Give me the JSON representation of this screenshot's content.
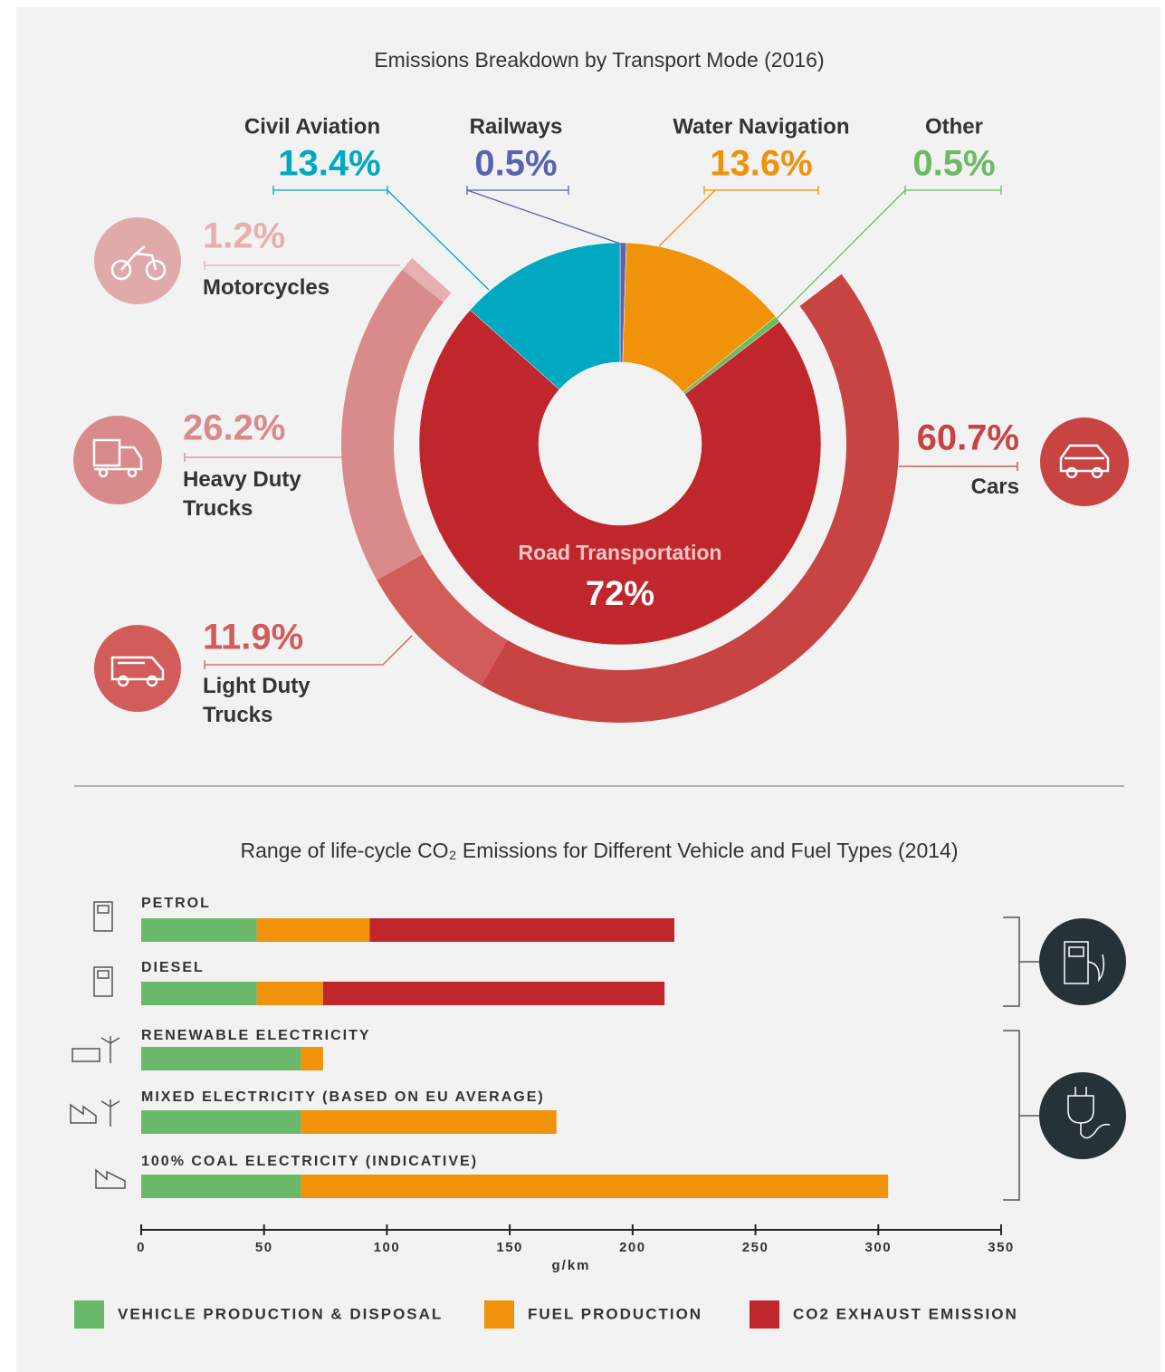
{
  "chart_data": [
    {
      "type": "donut",
      "title": "Emissions Breakdown by Transport Mode (2016)",
      "categories": [
        "Railways",
        "Water Navigation",
        "Other",
        "Road Transportation",
        "Civil Aviation"
      ],
      "values": [
        0.5,
        13.6,
        0.5,
        72,
        13.4
      ],
      "value_labels": [
        "0.5%",
        "13.6%",
        "0.5%",
        "72%",
        "13.4%"
      ],
      "colors": [
        "#5b62b0",
        "#f0920a",
        "#6abb64",
        "#c0272d",
        "#00a9c1"
      ],
      "breakdown": {
        "categories": [
          "Cars",
          "Light Duty Trucks",
          "Heavy Duty Trucks",
          "Motorcycles"
        ],
        "values": [
          60.7,
          11.9,
          26.2,
          1.2
        ],
        "value_labels": [
          "60.7%",
          "11.9%",
          "26.2%",
          "1.2%"
        ],
        "colors": [
          "#c74443",
          "#d25c5a",
          "#d98a8a",
          "#e6b0b0"
        ]
      }
    },
    {
      "type": "stacked_barh",
      "title": "Range of life-cycle CO₂ Emissions for Different Vehicle and Fuel Types (2014)",
      "categories": [
        "PETROL",
        "DIESEL",
        "RENEWABLE ELECTRICITY",
        "MIXED ELECTRICITY (BASED ON EU AVERAGE)",
        "100% COAL ELECTRICITY (INDICATIVE)"
      ],
      "series": [
        {
          "name": "VEHICLE PRODUCTION & DISPOSAL",
          "color": "#6ab86a",
          "values": [
            47,
            47,
            65,
            65,
            65
          ]
        },
        {
          "name": "FUEL PRODUCTION",
          "color": "#f0920a",
          "values": [
            46,
            27,
            9,
            104,
            239
          ]
        },
        {
          "name": "CO2 EXHAUST EMISSION",
          "color": "#c0272d",
          "values": [
            124,
            139,
            0,
            0,
            0
          ]
        }
      ],
      "xlabel": "g/km",
      "xlim": [
        0,
        350
      ],
      "xticks": [
        0,
        50,
        100,
        150,
        200,
        250,
        300,
        350
      ]
    }
  ]
}
